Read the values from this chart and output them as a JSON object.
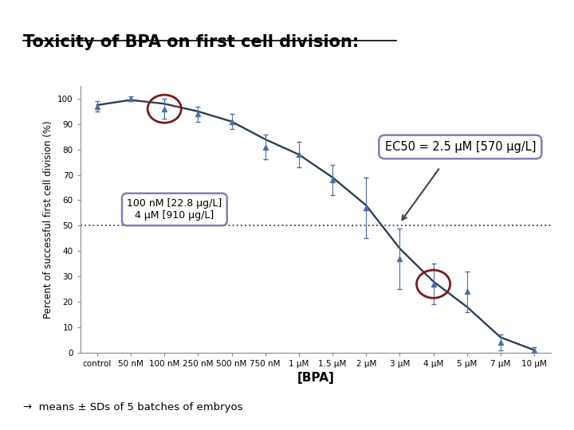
{
  "title": "Toxicity of BPA on first cell division:",
  "xlabel": "[BPA]",
  "ylabel": "Percent of successful first cell division (%)",
  "footnote": "→  means ± SDs of 5 batches of embryos",
  "x_labels": [
    "control",
    "50 nM",
    "100 nM",
    "250 nM",
    "500 nM",
    "750 nM",
    "1 μM",
    "1.5 μM",
    "2 μM",
    "3 μM",
    "4 μM",
    "5 μM",
    "7 μM",
    "10 μM"
  ],
  "y_values": [
    97,
    100,
    96,
    94,
    91,
    81,
    78,
    68,
    57,
    37,
    27,
    24,
    4,
    1
  ],
  "y_errors": [
    2,
    1,
    4,
    3,
    3,
    5,
    5,
    6,
    12,
    12,
    8,
    8,
    3,
    1
  ],
  "fit_y": [
    97.5,
    99.5,
    98,
    95,
    91,
    84,
    78,
    69,
    58,
    41,
    28,
    18,
    6,
    1
  ],
  "ec50_label_main": "EC",
  "ec50_label_sub": "50",
  "ec50_label_rest": " = 2.5 μM [570 μg/L]",
  "annotation1_line1": "100 nM [22.8 μg/L]",
  "annotation1_line2": "4 μM [910 μg/L]",
  "ylim": [
    0,
    105
  ],
  "bg_color": "#ffffff",
  "data_color": "#4a6fa5",
  "fit_color_light": "#a0b8cc",
  "fit_color_dark": "#2c3e50",
  "dotted_line_color": "#555555",
  "circle_color": "#7a1a1a",
  "box_edge_color": "#8080b0",
  "title_fontsize": 15,
  "axis_fontsize": 9,
  "tick_fontsize": 7.5
}
